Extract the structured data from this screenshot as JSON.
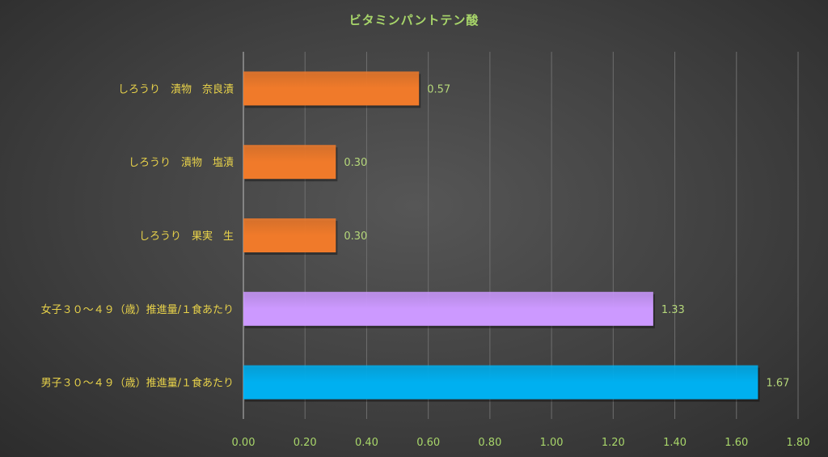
{
  "chart_data": {
    "type": "bar",
    "orientation": "horizontal",
    "title": "ビタミンパントテン酸",
    "xlabel": "",
    "ylabel": "",
    "xlim": [
      0,
      1.8
    ],
    "ticks": [
      "0.00",
      "0.20",
      "0.40",
      "0.60",
      "0.80",
      "1.00",
      "1.20",
      "1.40",
      "1.60",
      "1.80"
    ],
    "grid": true,
    "categories": [
      "しろうり　漬物　奈良漬",
      "しろうり　漬物　塩漬",
      "しろうり　果実　生",
      "女子３０～４９（歳）推進量/１食あたり",
      "男子３０～４９（歳）推進量/１食あたり"
    ],
    "values": [
      0.57,
      0.3,
      0.3,
      1.33,
      1.67
    ],
    "value_labels": [
      "0.57",
      "0.30",
      "0.30",
      "1.33",
      "1.67"
    ],
    "colors": [
      "#f07a2a",
      "#f07a2a",
      "#f07a2a",
      "#cc99ff",
      "#00b0f0"
    ]
  }
}
